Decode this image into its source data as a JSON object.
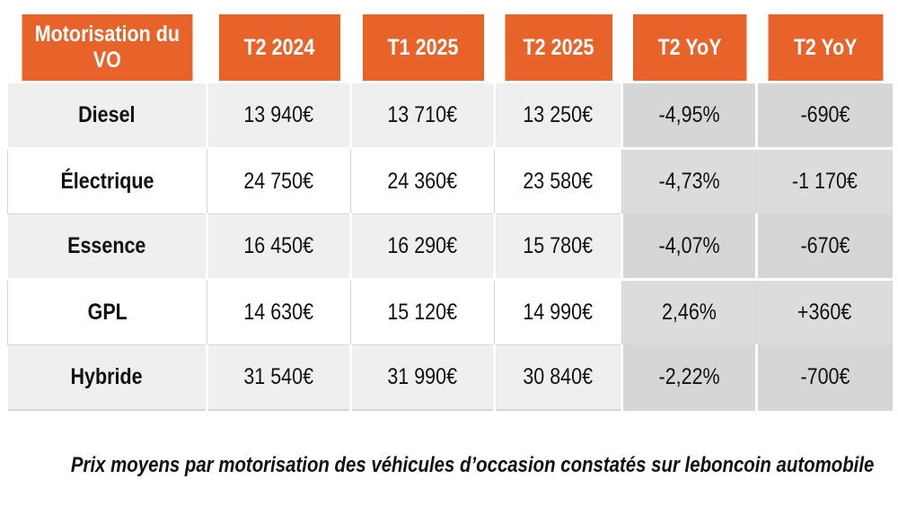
{
  "table": {
    "headers": [
      "Motorisation du VO",
      "T2 2024",
      "T1 2025",
      "T2 2025",
      "T2 YoY",
      "T2 YoY"
    ],
    "rows": [
      [
        "Diesel",
        "13 940€",
        "13 710€",
        "13 250€",
        "-4,95%",
        "-690€"
      ],
      [
        "Électrique",
        "24 750€",
        "24 360€",
        "23 580€",
        "-4,73%",
        "-1 170€"
      ],
      [
        "Essence",
        "16 450€",
        "16 290€",
        "15 780€",
        "-4,07%",
        "-670€"
      ],
      [
        "GPL",
        "14 630€",
        "15 120€",
        "14 990€",
        "2,46%",
        "+360€"
      ],
      [
        "Hybride",
        "31 540€",
        "31 990€",
        "30 840€",
        "-2,22%",
        "-700€"
      ]
    ]
  },
  "caption": "Prix moyens par motorisation des véhicules d’occasion constatés sur leboncoin automobile",
  "colors": {
    "header_bg": "#e8632a",
    "header_text": "#ffffff",
    "row_alt_bg": "#efefef",
    "yoy_bg": "#d9d9d9"
  }
}
